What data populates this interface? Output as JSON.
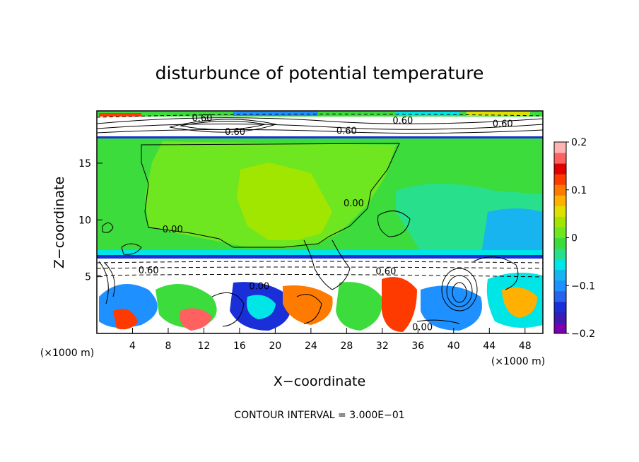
{
  "chart_data": {
    "type": "heatmap",
    "title": "disturbunce of potential temperature",
    "xlabel": "X−coordinate",
    "ylabel": "Z−coordinate",
    "x_unit": "(×1000 m)",
    "x_unit_right": "(×1000 m)",
    "xlim": [
      0,
      50
    ],
    "ylim": [
      0,
      19.6
    ],
    "x_ticks": [
      4,
      8,
      12,
      16,
      20,
      24,
      28,
      32,
      36,
      40,
      44,
      48
    ],
    "y_ticks": [
      5,
      10,
      15
    ],
    "colorbar": {
      "range": [
        -0.2,
        0.2
      ],
      "ticks": [
        0.2,
        0.1,
        0,
        -0.1,
        -0.2
      ],
      "tick_labels": [
        "0.2",
        "0.1",
        "0",
        "−0.1",
        "−0.2"
      ],
      "colors": [
        "#7a00b0",
        "#3c1ab4",
        "#1a2fd8",
        "#2a62f0",
        "#1e90ff",
        "#18b4f0",
        "#00e6e6",
        "#28e08c",
        "#3cdc3c",
        "#6ee620",
        "#a0e600",
        "#e0e000",
        "#ffb000",
        "#ff7a00",
        "#ff3a00",
        "#e00000",
        "#ff6060",
        "#ffb4b4"
      ]
    },
    "contour_labels": [
      {
        "text": "0.60",
        "x": 11.8,
        "y": 19.0
      },
      {
        "text": "0.60",
        "x": 15.5,
        "y": 17.8
      },
      {
        "text": "0.60",
        "x": 34.3,
        "y": 18.8
      },
      {
        "text": "0.60",
        "x": 28.0,
        "y": 17.9
      },
      {
        "text": "0.60",
        "x": 45.5,
        "y": 18.5
      },
      {
        "text": "0.00",
        "x": 8.5,
        "y": 9.2
      },
      {
        "text": "0.00",
        "x": 28.8,
        "y": 11.5
      },
      {
        "text": "0.60",
        "x": 5.8,
        "y": 5.6
      },
      {
        "text": "0.60",
        "x": 32.4,
        "y": 5.5
      },
      {
        "text": "0.00",
        "x": 18.2,
        "y": 4.2
      },
      {
        "text": "0.00",
        "x": 36.5,
        "y": 0.6
      }
    ],
    "contour_interval": "CONTOUR INTERVAL = 3.000E−01"
  }
}
